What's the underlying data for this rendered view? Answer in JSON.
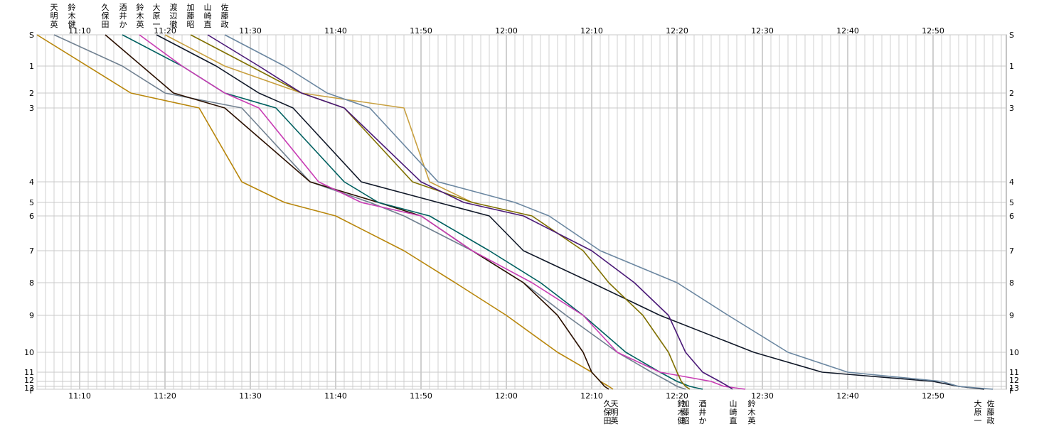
{
  "chart_data": {
    "type": "line",
    "x_tick_labels": [
      "11:10",
      "11:20",
      "11:30",
      "11:40",
      "11:50",
      "12:00",
      "12:10",
      "12:20",
      "12:30",
      "12:40",
      "12:50"
    ],
    "x_range_minutes": [
      "11:02",
      "12:58"
    ],
    "y_tick_labels": [
      "S",
      "1",
      "2",
      "3",
      "4",
      "5",
      "6",
      "7",
      "8",
      "9",
      "10",
      "11",
      "12",
      "13",
      "F"
    ],
    "grid": true,
    "top_legend_order": [
      "天明英",
      "鈴木健",
      "久保田",
      "酒井か",
      "鈴木英",
      "大原一",
      "渡辺徹",
      "加藤昭",
      "山崎直",
      "佐藤政"
    ],
    "series": [
      {
        "name": "天明英",
        "color": "#b8860b",
        "end_label": "天明英",
        "points": [
          [
            "11:05",
            "S"
          ],
          [
            "11:16",
            "2"
          ],
          [
            "11:24",
            "3"
          ],
          [
            "11:29",
            "4"
          ],
          [
            "11:34",
            "5"
          ],
          [
            "11:40",
            "6"
          ],
          [
            "11:48",
            "7"
          ],
          [
            "11:54",
            "8"
          ],
          [
            "12:00",
            "9"
          ],
          [
            "12:06",
            "10"
          ],
          [
            "12:10",
            "11"
          ],
          [
            "12:11",
            "12"
          ],
          [
            "12:12",
            "13"
          ],
          [
            "12:12.5",
            "F"
          ]
        ]
      },
      {
        "name": "鈴木健",
        "color": "#708090",
        "end_label": "鈴木健",
        "points": [
          [
            "11:07",
            "S"
          ],
          [
            "11:15",
            "1"
          ],
          [
            "11:20",
            "2"
          ],
          [
            "11:29",
            "3"
          ],
          [
            "11:37",
            "4"
          ],
          [
            "11:44",
            "5"
          ],
          [
            "11:48",
            "6"
          ],
          [
            "11:56",
            "7"
          ],
          [
            "12:02",
            "8"
          ],
          [
            "12:07",
            "9"
          ],
          [
            "12:13",
            "10"
          ],
          [
            "12:17",
            "11"
          ],
          [
            "12:19",
            "12"
          ],
          [
            "12:20",
            "13"
          ],
          [
            "12:21",
            "F"
          ]
        ]
      },
      {
        "name": "久保田",
        "color": "#2a1000",
        "end_label": "久保田",
        "points": [
          [
            "11:13",
            "S"
          ],
          [
            "11:21",
            "2"
          ],
          [
            "11:27",
            "3"
          ],
          [
            "11:37",
            "4"
          ],
          [
            "11:45",
            "5"
          ],
          [
            "11:50",
            "6"
          ],
          [
            "11:56",
            "7"
          ],
          [
            "12:02",
            "8"
          ],
          [
            "12:06",
            "9"
          ],
          [
            "12:09",
            "10"
          ],
          [
            "12:10",
            "11"
          ],
          [
            "12:11",
            "12"
          ],
          [
            "12:11.5",
            "13"
          ],
          [
            "12:12",
            "F"
          ]
        ]
      },
      {
        "name": "酒井か",
        "color": "#006060",
        "end_label": "酒井か",
        "points": [
          [
            "11:15",
            "S"
          ],
          [
            "11:22",
            "1"
          ],
          [
            "11:27",
            "2"
          ],
          [
            "11:33",
            "3"
          ],
          [
            "11:41",
            "4"
          ],
          [
            "11:45",
            "5"
          ],
          [
            "11:51",
            "6"
          ],
          [
            "11:58",
            "7"
          ],
          [
            "12:04",
            "8"
          ],
          [
            "12:09",
            "9"
          ],
          [
            "12:14",
            "10"
          ],
          [
            "12:18",
            "11"
          ],
          [
            "12:20",
            "12"
          ],
          [
            "12:21.5",
            "13"
          ],
          [
            "12:23",
            "F"
          ]
        ]
      },
      {
        "name": "鈴木英",
        "color": "#c83cb4",
        "end_label": "鈴木英",
        "points": [
          [
            "11:17",
            "S"
          ],
          [
            "11:22",
            "1"
          ],
          [
            "11:27",
            "2"
          ],
          [
            "11:31",
            "3"
          ],
          [
            "11:38",
            "4"
          ],
          [
            "11:43",
            "5"
          ],
          [
            "11:50",
            "6"
          ],
          [
            "11:56",
            "7"
          ],
          [
            "12:03",
            "8"
          ],
          [
            "12:09",
            "9"
          ],
          [
            "12:13",
            "10"
          ],
          [
            "12:18",
            "11"
          ],
          [
            "12:24",
            "12"
          ],
          [
            "12:25.5",
            "13"
          ],
          [
            "12:28",
            "F"
          ]
        ]
      },
      {
        "name": "大原一",
        "color": "#101828",
        "end_label": "大原一",
        "points": [
          [
            "11:19",
            "S"
          ],
          [
            "11:26",
            "1"
          ],
          [
            "11:31",
            "2"
          ],
          [
            "11:35",
            "3"
          ],
          [
            "11:43",
            "4"
          ],
          [
            "11:52",
            "5"
          ],
          [
            "11:58",
            "6"
          ],
          [
            "12:02",
            "7"
          ],
          [
            "12:10",
            "8"
          ],
          [
            "12:18",
            "9"
          ],
          [
            "12:29",
            "10"
          ],
          [
            "12:37",
            "11"
          ],
          [
            "12:50",
            "12"
          ],
          [
            "12:53",
            "13"
          ],
          [
            "12:56",
            "F"
          ]
        ]
      },
      {
        "name": "渡辺徹",
        "color": "#c8a040",
        "end_label": "",
        "points": [
          [
            "11:20",
            "S"
          ],
          [
            "11:27",
            "1"
          ],
          [
            "11:36",
            "2"
          ],
          [
            "11:48",
            "3"
          ],
          [
            "11:51",
            "4"
          ],
          [
            "11:56",
            "5"
          ]
        ]
      },
      {
        "name": "加藤昭",
        "color": "#807000",
        "end_label": "加藤昭",
        "points": [
          [
            "11:23",
            "S"
          ],
          [
            "11:30",
            "1"
          ],
          [
            "11:36",
            "2"
          ],
          [
            "11:41",
            "3"
          ],
          [
            "11:49",
            "4"
          ],
          [
            "11:56",
            "5"
          ],
          [
            "12:03",
            "6"
          ],
          [
            "12:09",
            "7"
          ],
          [
            "12:12",
            "8"
          ],
          [
            "12:16",
            "9"
          ],
          [
            "12:19",
            "10"
          ],
          [
            "12:20",
            "11"
          ],
          [
            "12:20.5",
            "12"
          ],
          [
            "12:21",
            "13"
          ],
          [
            "12:21.5",
            "F"
          ]
        ]
      },
      {
        "name": "山崎直",
        "color": "#4b1a78",
        "end_label": "山崎直",
        "points": [
          [
            "11:25",
            "S"
          ],
          [
            "11:31",
            "1"
          ],
          [
            "11:36",
            "2"
          ],
          [
            "11:41",
            "3"
          ],
          [
            "11:50",
            "4"
          ],
          [
            "11:55",
            "5"
          ],
          [
            "12:02",
            "6"
          ],
          [
            "12:10",
            "7"
          ],
          [
            "12:15",
            "8"
          ],
          [
            "12:19",
            "9"
          ],
          [
            "12:21",
            "10"
          ],
          [
            "12:23",
            "11"
          ],
          [
            "12:25",
            "12"
          ],
          [
            "12:26",
            "13"
          ],
          [
            "12:26.5",
            "F"
          ]
        ]
      },
      {
        "name": "佐藤政",
        "color": "#6a86a0",
        "end_label": "佐藤政",
        "points": [
          [
            "11:27",
            "S"
          ],
          [
            "11:34",
            "1"
          ],
          [
            "11:39",
            "2"
          ],
          [
            "11:44",
            "3"
          ],
          [
            "11:52",
            "4"
          ],
          [
            "12:01",
            "5"
          ],
          [
            "12:05",
            "6"
          ],
          [
            "12:11",
            "7"
          ],
          [
            "12:20",
            "8"
          ],
          [
            "12:26",
            "9"
          ],
          [
            "12:33",
            "10"
          ],
          [
            "12:40",
            "11"
          ],
          [
            "12:51",
            "12"
          ],
          [
            "12:53",
            "13"
          ],
          [
            "12:57",
            "F"
          ]
        ]
      }
    ]
  }
}
